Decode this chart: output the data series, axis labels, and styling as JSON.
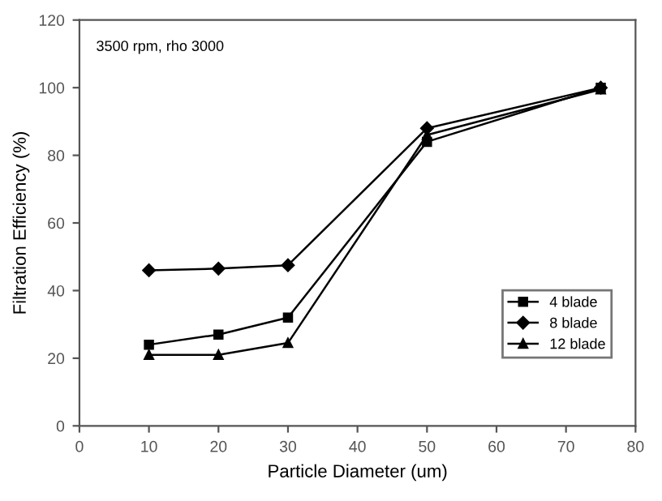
{
  "chart_data": {
    "type": "line",
    "xlabel": "Particle Diameter (um)",
    "ylabel": "Filtration Efficiency (%)",
    "annotations": [
      "3500 rpm, rho 3000"
    ],
    "x": [
      10,
      20,
      30,
      50,
      75
    ],
    "series": [
      {
        "name": "4 blade",
        "color": "#000000",
        "marker": "square",
        "values": [
          24,
          27,
          32,
          84,
          100
        ]
      },
      {
        "name": "8 blade",
        "color": "#000000",
        "marker": "diamond",
        "values": [
          46,
          46.5,
          47.5,
          88,
          100
        ]
      },
      {
        "name": "12 blade",
        "color": "#000000",
        "marker": "triangle",
        "values": [
          21,
          21,
          24.5,
          86,
          99.5
        ]
      }
    ],
    "xlim": [
      0,
      80
    ],
    "xticks": [
      0,
      10,
      20,
      30,
      40,
      50,
      60,
      70,
      80
    ],
    "ylim": [
      0,
      120
    ],
    "yticks": [
      0,
      20,
      40,
      60,
      80,
      100,
      120
    ],
    "grid": false,
    "legend": "bottom right",
    "line_style": "solid"
  }
}
